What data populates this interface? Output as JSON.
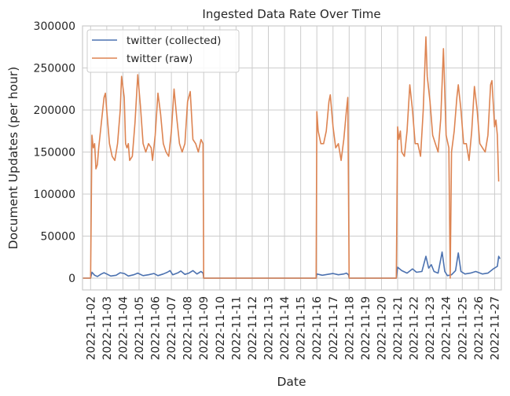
{
  "chart_data": {
    "type": "line",
    "title": "Ingested Data Rate Over Time",
    "xlabel": "Date",
    "ylabel": "Document Updates (per hour)",
    "ylim": [
      -14000,
      300000
    ],
    "yticks": [
      0,
      50000,
      100000,
      150000,
      200000,
      250000,
      300000
    ],
    "xlim": [
      "2022-11-01T12:00",
      "2022-11-27T10:00"
    ],
    "xticks": [
      "2022-11-02",
      "2022-11-03",
      "2022-11-04",
      "2022-11-05",
      "2022-11-06",
      "2022-11-07",
      "2022-11-08",
      "2022-11-09",
      "2022-11-10",
      "2022-11-11",
      "2022-11-12",
      "2022-11-13",
      "2022-11-14",
      "2022-11-15",
      "2022-11-16",
      "2022-11-17",
      "2022-11-18",
      "2022-11-19",
      "2022-11-20",
      "2022-11-21",
      "2022-11-22",
      "2022-11-23",
      "2022-11-24",
      "2022-11-25",
      "2022-11-26",
      "2022-11-27"
    ],
    "grid": true,
    "legend": "top-left",
    "series": [
      {
        "name": "twitter (collected)",
        "color": "#4c72b0",
        "points": [
          [
            "2022-11-01T12:00",
            0
          ],
          [
            "2022-11-02T00:00",
            0
          ],
          [
            "2022-11-02T02:00",
            7000
          ],
          [
            "2022-11-02T06:00",
            3500
          ],
          [
            "2022-11-02T10:00",
            2000
          ],
          [
            "2022-11-02T16:00",
            5000
          ],
          [
            "2022-11-02T20:00",
            6500
          ],
          [
            "2022-11-03T00:00",
            5000
          ],
          [
            "2022-11-03T06:00",
            2500
          ],
          [
            "2022-11-03T14:00",
            3500
          ],
          [
            "2022-11-03T20:00",
            6500
          ],
          [
            "2022-11-04T02:00",
            5500
          ],
          [
            "2022-11-04T08:00",
            2500
          ],
          [
            "2022-11-04T16:00",
            4000
          ],
          [
            "2022-11-04T22:00",
            6000
          ],
          [
            "2022-11-05T06:00",
            3000
          ],
          [
            "2022-11-05T14:00",
            4000
          ],
          [
            "2022-11-05T22:00",
            5500
          ],
          [
            "2022-11-06T04:00",
            3000
          ],
          [
            "2022-11-06T12:00",
            5000
          ],
          [
            "2022-11-06T18:00",
            7000
          ],
          [
            "2022-11-06T22:00",
            9000
          ],
          [
            "2022-11-07T02:00",
            4000
          ],
          [
            "2022-11-07T10:00",
            6500
          ],
          [
            "2022-11-07T14:00",
            8500
          ],
          [
            "2022-11-07T20:00",
            4500
          ],
          [
            "2022-11-08T02:00",
            6000
          ],
          [
            "2022-11-08T08:00",
            9000
          ],
          [
            "2022-11-08T14:00",
            5000
          ],
          [
            "2022-11-08T20:00",
            8000
          ],
          [
            "2022-11-08T23:00",
            6000
          ],
          [
            "2022-11-09T00:00",
            0
          ],
          [
            "2022-11-15T23:00",
            0
          ],
          [
            "2022-11-16T00:00",
            5000
          ],
          [
            "2022-11-16T08:00",
            3500
          ],
          [
            "2022-11-16T16:00",
            4500
          ],
          [
            "2022-11-17T00:00",
            5500
          ],
          [
            "2022-11-17T08:00",
            4000
          ],
          [
            "2022-11-17T16:00",
            5000
          ],
          [
            "2022-11-17T20:00",
            6000
          ],
          [
            "2022-11-17T23:00",
            4000
          ],
          [
            "2022-11-18T00:00",
            0
          ],
          [
            "2022-11-20T22:00",
            0
          ],
          [
            "2022-11-21T00:00",
            13000
          ],
          [
            "2022-11-21T06:00",
            9000
          ],
          [
            "2022-11-21T14:00",
            6000
          ],
          [
            "2022-11-21T22:00",
            11000
          ],
          [
            "2022-11-22T04:00",
            7000
          ],
          [
            "2022-11-22T12:00",
            8000
          ],
          [
            "2022-11-22T18:00",
            26000
          ],
          [
            "2022-11-22T22:00",
            12000
          ],
          [
            "2022-11-23T02:00",
            16000
          ],
          [
            "2022-11-23T06:00",
            8000
          ],
          [
            "2022-11-23T12:00",
            6000
          ],
          [
            "2022-11-23T18:00",
            31000
          ],
          [
            "2022-11-23T22:00",
            8000
          ],
          [
            "2022-11-24T02:00",
            3000
          ],
          [
            "2022-11-24T08:00",
            4000
          ],
          [
            "2022-11-24T14:00",
            9000
          ],
          [
            "2022-11-24T18:00",
            30000
          ],
          [
            "2022-11-24T22:00",
            8000
          ],
          [
            "2022-11-25T04:00",
            5000
          ],
          [
            "2022-11-25T12:00",
            6000
          ],
          [
            "2022-11-25T20:00",
            8000
          ],
          [
            "2022-11-26T06:00",
            5000
          ],
          [
            "2022-11-26T14:00",
            6000
          ],
          [
            "2022-11-26T22:00",
            11000
          ],
          [
            "2022-11-27T04:00",
            14000
          ],
          [
            "2022-11-27T06:00",
            26000
          ],
          [
            "2022-11-27T08:00",
            23000
          ]
        ]
      },
      {
        "name": "twitter (raw)",
        "color": "#dd8452",
        "points": [
          [
            "2022-11-01T12:00",
            0
          ],
          [
            "2022-11-02T00:00",
            0
          ],
          [
            "2022-11-02T02:00",
            170000
          ],
          [
            "2022-11-02T04:00",
            155000
          ],
          [
            "2022-11-02T06:00",
            160000
          ],
          [
            "2022-11-02T08:00",
            130000
          ],
          [
            "2022-11-02T10:00",
            135000
          ],
          [
            "2022-11-02T12:00",
            155000
          ],
          [
            "2022-11-02T16:00",
            185000
          ],
          [
            "2022-11-02T20:00",
            215000
          ],
          [
            "2022-11-02T22:00",
            220000
          ],
          [
            "2022-11-03T00:00",
            200000
          ],
          [
            "2022-11-03T04:00",
            160000
          ],
          [
            "2022-11-03T08:00",
            145000
          ],
          [
            "2022-11-03T12:00",
            140000
          ],
          [
            "2022-11-03T16:00",
            160000
          ],
          [
            "2022-11-03T20:00",
            200000
          ],
          [
            "2022-11-03T22:00",
            240000
          ],
          [
            "2022-11-04T02:00",
            215000
          ],
          [
            "2022-11-04T04:00",
            160000
          ],
          [
            "2022-11-04T06:00",
            155000
          ],
          [
            "2022-11-04T08:00",
            160000
          ],
          [
            "2022-11-04T10:00",
            140000
          ],
          [
            "2022-11-04T14:00",
            145000
          ],
          [
            "2022-11-04T18:00",
            185000
          ],
          [
            "2022-11-04T22:00",
            242000
          ],
          [
            "2022-11-05T02:00",
            205000
          ],
          [
            "2022-11-05T06:00",
            160000
          ],
          [
            "2022-11-05T10:00",
            150000
          ],
          [
            "2022-11-05T14:00",
            160000
          ],
          [
            "2022-11-05T18:00",
            155000
          ],
          [
            "2022-11-05T20:00",
            140000
          ],
          [
            "2022-11-06T00:00",
            170000
          ],
          [
            "2022-11-06T04:00",
            220000
          ],
          [
            "2022-11-06T08:00",
            195000
          ],
          [
            "2022-11-06T12:00",
            160000
          ],
          [
            "2022-11-06T16:00",
            150000
          ],
          [
            "2022-11-06T20:00",
            145000
          ],
          [
            "2022-11-07T00:00",
            175000
          ],
          [
            "2022-11-07T04:00",
            225000
          ],
          [
            "2022-11-07T08:00",
            190000
          ],
          [
            "2022-11-07T12:00",
            160000
          ],
          [
            "2022-11-07T16:00",
            150000
          ],
          [
            "2022-11-07T20:00",
            160000
          ],
          [
            "2022-11-08T00:00",
            210000
          ],
          [
            "2022-11-08T04:00",
            222000
          ],
          [
            "2022-11-08T08:00",
            165000
          ],
          [
            "2022-11-08T12:00",
            160000
          ],
          [
            "2022-11-08T16:00",
            150000
          ],
          [
            "2022-11-08T20:00",
            165000
          ],
          [
            "2022-11-08T23:00",
            160000
          ],
          [
            "2022-11-09T00:00",
            0
          ],
          [
            "2022-11-15T23:00",
            0
          ],
          [
            "2022-11-16T00:00",
            198000
          ],
          [
            "2022-11-16T02:00",
            175000
          ],
          [
            "2022-11-16T06:00",
            160000
          ],
          [
            "2022-11-16T10:00",
            160000
          ],
          [
            "2022-11-16T14:00",
            175000
          ],
          [
            "2022-11-16T18:00",
            210000
          ],
          [
            "2022-11-16T20:00",
            218000
          ],
          [
            "2022-11-17T00:00",
            180000
          ],
          [
            "2022-11-17T04:00",
            155000
          ],
          [
            "2022-11-17T08:00",
            160000
          ],
          [
            "2022-11-17T12:00",
            140000
          ],
          [
            "2022-11-17T16:00",
            165000
          ],
          [
            "2022-11-17T20:00",
            200000
          ],
          [
            "2022-11-17T22:00",
            215000
          ],
          [
            "2022-11-18T00:00",
            0
          ],
          [
            "2022-11-20T22:00",
            0
          ],
          [
            "2022-11-21T00:00",
            180000
          ],
          [
            "2022-11-21T02:00",
            165000
          ],
          [
            "2022-11-21T04:00",
            175000
          ],
          [
            "2022-11-21T06:00",
            150000
          ],
          [
            "2022-11-21T10:00",
            145000
          ],
          [
            "2022-11-21T14:00",
            175000
          ],
          [
            "2022-11-21T18:00",
            230000
          ],
          [
            "2022-11-21T22:00",
            200000
          ],
          [
            "2022-11-22T02:00",
            160000
          ],
          [
            "2022-11-22T06:00",
            160000
          ],
          [
            "2022-11-22T10:00",
            145000
          ],
          [
            "2022-11-22T14:00",
            200000
          ],
          [
            "2022-11-22T18:00",
            287000
          ],
          [
            "2022-11-22T20:00",
            240000
          ],
          [
            "2022-11-23T00:00",
            210000
          ],
          [
            "2022-11-23T04:00",
            170000
          ],
          [
            "2022-11-23T08:00",
            160000
          ],
          [
            "2022-11-23T12:00",
            150000
          ],
          [
            "2022-11-23T16:00",
            190000
          ],
          [
            "2022-11-23T20:00",
            273000
          ],
          [
            "2022-11-24T00:00",
            170000
          ],
          [
            "2022-11-24T04:00",
            155000
          ],
          [
            "2022-11-24T06:00",
            0
          ],
          [
            "2022-11-24T08:00",
            150000
          ],
          [
            "2022-11-24T12:00",
            175000
          ],
          [
            "2022-11-24T16:00",
            215000
          ],
          [
            "2022-11-24T18:00",
            230000
          ],
          [
            "2022-11-24T22:00",
            200000
          ],
          [
            "2022-11-25T02:00",
            160000
          ],
          [
            "2022-11-25T06:00",
            160000
          ],
          [
            "2022-11-25T10:00",
            140000
          ],
          [
            "2022-11-25T14:00",
            175000
          ],
          [
            "2022-11-25T18:00",
            228000
          ],
          [
            "2022-11-25T22:00",
            200000
          ],
          [
            "2022-11-26T02:00",
            160000
          ],
          [
            "2022-11-26T06:00",
            155000
          ],
          [
            "2022-11-26T10:00",
            150000
          ],
          [
            "2022-11-26T14:00",
            170000
          ],
          [
            "2022-11-26T18:00",
            230000
          ],
          [
            "2022-11-26T20:00",
            235000
          ],
          [
            "2022-11-27T00:00",
            180000
          ],
          [
            "2022-11-27T02:00",
            188000
          ],
          [
            "2022-11-27T04:00",
            170000
          ],
          [
            "2022-11-27T06:00",
            115000
          ]
        ]
      }
    ]
  }
}
